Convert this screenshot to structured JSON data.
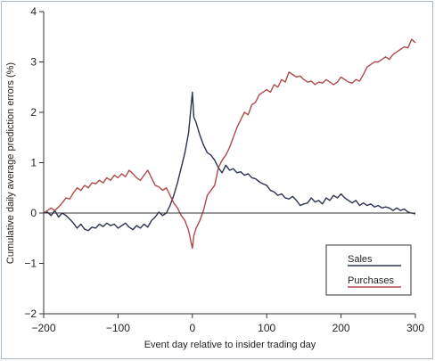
{
  "chart_data": {
    "type": "line",
    "title": "",
    "xlabel": "Event day relative to insider trading day",
    "ylabel": "Cumulative daily average prediction errors (%)",
    "xlim": [
      -200,
      300
    ],
    "ylim": [
      -2,
      4
    ],
    "x_ticks": [
      -200,
      -100,
      0,
      100,
      200,
      300
    ],
    "x_tick_labels": [
      "−200",
      "−100",
      "0",
      "100",
      "200",
      "300"
    ],
    "y_ticks": [
      -2,
      -1,
      0,
      1,
      2,
      3,
      4
    ],
    "y_tick_labels": [
      "−2",
      "−1",
      "0",
      "1",
      "2",
      "3",
      "4"
    ],
    "zero_line": true,
    "grid": false,
    "legend_position": "bottom-right",
    "series": [
      {
        "name": "Sales",
        "color": "#2b3450",
        "points": [
          [
            -200,
            0.0
          ],
          [
            -195,
            0.02
          ],
          [
            -190,
            -0.05
          ],
          [
            -185,
            0.05
          ],
          [
            -180,
            -0.08
          ],
          [
            -175,
            0.0
          ],
          [
            -170,
            -0.05
          ],
          [
            -165,
            -0.12
          ],
          [
            -160,
            -0.2
          ],
          [
            -155,
            -0.3
          ],
          [
            -150,
            -0.22
          ],
          [
            -145,
            -0.32
          ],
          [
            -140,
            -0.35
          ],
          [
            -135,
            -0.28
          ],
          [
            -130,
            -0.3
          ],
          [
            -125,
            -0.22
          ],
          [
            -120,
            -0.27
          ],
          [
            -115,
            -0.2
          ],
          [
            -110,
            -0.25
          ],
          [
            -105,
            -0.22
          ],
          [
            -100,
            -0.3
          ],
          [
            -95,
            -0.25
          ],
          [
            -90,
            -0.2
          ],
          [
            -85,
            -0.28
          ],
          [
            -80,
            -0.33
          ],
          [
            -75,
            -0.25
          ],
          [
            -70,
            -0.3
          ],
          [
            -65,
            -0.22
          ],
          [
            -60,
            -0.28
          ],
          [
            -55,
            -0.15
          ],
          [
            -50,
            -0.08
          ],
          [
            -45,
            0.02
          ],
          [
            -40,
            -0.05
          ],
          [
            -35,
            0.0
          ],
          [
            -30,
            0.15
          ],
          [
            -25,
            0.35
          ],
          [
            -20,
            0.6
          ],
          [
            -15,
            0.9
          ],
          [
            -10,
            1.2
          ],
          [
            -5,
            1.6
          ],
          [
            0,
            2.4
          ],
          [
            2,
            1.9
          ],
          [
            5,
            1.8
          ],
          [
            10,
            1.55
          ],
          [
            15,
            1.35
          ],
          [
            20,
            1.2
          ],
          [
            25,
            1.15
          ],
          [
            30,
            1.05
          ],
          [
            35,
            0.9
          ],
          [
            40,
            0.8
          ],
          [
            45,
            0.95
          ],
          [
            50,
            0.85
          ],
          [
            55,
            0.88
          ],
          [
            60,
            0.8
          ],
          [
            65,
            0.82
          ],
          [
            70,
            0.75
          ],
          [
            75,
            0.78
          ],
          [
            80,
            0.7
          ],
          [
            85,
            0.68
          ],
          [
            90,
            0.62
          ],
          [
            95,
            0.58
          ],
          [
            100,
            0.55
          ],
          [
            105,
            0.45
          ],
          [
            110,
            0.42
          ],
          [
            115,
            0.35
          ],
          [
            120,
            0.38
          ],
          [
            125,
            0.3
          ],
          [
            130,
            0.28
          ],
          [
            135,
            0.33
          ],
          [
            140,
            0.25
          ],
          [
            145,
            0.15
          ],
          [
            150,
            0.18
          ],
          [
            155,
            0.2
          ],
          [
            160,
            0.3
          ],
          [
            165,
            0.22
          ],
          [
            170,
            0.25
          ],
          [
            175,
            0.18
          ],
          [
            180,
            0.3
          ],
          [
            185,
            0.25
          ],
          [
            190,
            0.35
          ],
          [
            195,
            0.3
          ],
          [
            200,
            0.38
          ],
          [
            205,
            0.3
          ],
          [
            210,
            0.25
          ],
          [
            215,
            0.2
          ],
          [
            220,
            0.25
          ],
          [
            225,
            0.15
          ],
          [
            230,
            0.2
          ],
          [
            235,
            0.15
          ],
          [
            240,
            0.18
          ],
          [
            245,
            0.12
          ],
          [
            250,
            0.15
          ],
          [
            255,
            0.1
          ],
          [
            260,
            0.12
          ],
          [
            265,
            0.1
          ],
          [
            270,
            0.05
          ],
          [
            275,
            0.1
          ],
          [
            280,
            0.05
          ],
          [
            285,
            0.08
          ],
          [
            290,
            0.02
          ],
          [
            295,
            0.0
          ],
          [
            300,
            -0.02
          ]
        ]
      },
      {
        "name": "Purchases",
        "color": "#b04a4a",
        "points": [
          [
            -200,
            0.0
          ],
          [
            -195,
            0.05
          ],
          [
            -190,
            0.1
          ],
          [
            -185,
            0.05
          ],
          [
            -180,
            0.12
          ],
          [
            -175,
            0.2
          ],
          [
            -170,
            0.3
          ],
          [
            -165,
            0.28
          ],
          [
            -160,
            0.4
          ],
          [
            -155,
            0.5
          ],
          [
            -150,
            0.45
          ],
          [
            -145,
            0.55
          ],
          [
            -140,
            0.5
          ],
          [
            -135,
            0.6
          ],
          [
            -130,
            0.58
          ],
          [
            -125,
            0.65
          ],
          [
            -120,
            0.6
          ],
          [
            -115,
            0.7
          ],
          [
            -110,
            0.65
          ],
          [
            -105,
            0.75
          ],
          [
            -100,
            0.7
          ],
          [
            -95,
            0.78
          ],
          [
            -90,
            0.72
          ],
          [
            -85,
            0.85
          ],
          [
            -80,
            0.78
          ],
          [
            -75,
            0.7
          ],
          [
            -70,
            0.65
          ],
          [
            -65,
            0.75
          ],
          [
            -60,
            0.85
          ],
          [
            -55,
            0.7
          ],
          [
            -50,
            0.55
          ],
          [
            -45,
            0.52
          ],
          [
            -40,
            0.45
          ],
          [
            -35,
            0.5
          ],
          [
            -30,
            0.35
          ],
          [
            -25,
            0.2
          ],
          [
            -20,
            0.1
          ],
          [
            -15,
            -0.05
          ],
          [
            -10,
            -0.15
          ],
          [
            -5,
            -0.35
          ],
          [
            0,
            -0.7
          ],
          [
            2,
            -0.45
          ],
          [
            5,
            -0.3
          ],
          [
            10,
            -0.15
          ],
          [
            15,
            0.05
          ],
          [
            20,
            0.35
          ],
          [
            25,
            0.45
          ],
          [
            30,
            0.55
          ],
          [
            35,
            0.9
          ],
          [
            40,
            1.05
          ],
          [
            45,
            1.15
          ],
          [
            50,
            1.3
          ],
          [
            55,
            1.5
          ],
          [
            60,
            1.7
          ],
          [
            65,
            1.85
          ],
          [
            70,
            2.0
          ],
          [
            75,
            1.95
          ],
          [
            80,
            2.15
          ],
          [
            85,
            2.2
          ],
          [
            90,
            2.35
          ],
          [
            95,
            2.4
          ],
          [
            100,
            2.45
          ],
          [
            105,
            2.4
          ],
          [
            110,
            2.55
          ],
          [
            115,
            2.5
          ],
          [
            120,
            2.65
          ],
          [
            125,
            2.6
          ],
          [
            130,
            2.8
          ],
          [
            135,
            2.75
          ],
          [
            140,
            2.7
          ],
          [
            145,
            2.72
          ],
          [
            150,
            2.65
          ],
          [
            155,
            2.6
          ],
          [
            160,
            2.62
          ],
          [
            165,
            2.55
          ],
          [
            170,
            2.6
          ],
          [
            175,
            2.58
          ],
          [
            180,
            2.65
          ],
          [
            185,
            2.6
          ],
          [
            190,
            2.55
          ],
          [
            195,
            2.6
          ],
          [
            200,
            2.7
          ],
          [
            205,
            2.65
          ],
          [
            210,
            2.6
          ],
          [
            215,
            2.58
          ],
          [
            220,
            2.65
          ],
          [
            225,
            2.62
          ],
          [
            230,
            2.75
          ],
          [
            235,
            2.9
          ],
          [
            240,
            2.95
          ],
          [
            245,
            3.0
          ],
          [
            250,
            3.0
          ],
          [
            255,
            3.05
          ],
          [
            260,
            3.1
          ],
          [
            265,
            3.05
          ],
          [
            270,
            3.15
          ],
          [
            275,
            3.2
          ],
          [
            280,
            3.25
          ],
          [
            285,
            3.3
          ],
          [
            290,
            3.28
          ],
          [
            295,
            3.45
          ],
          [
            300,
            3.38
          ]
        ]
      }
    ]
  }
}
